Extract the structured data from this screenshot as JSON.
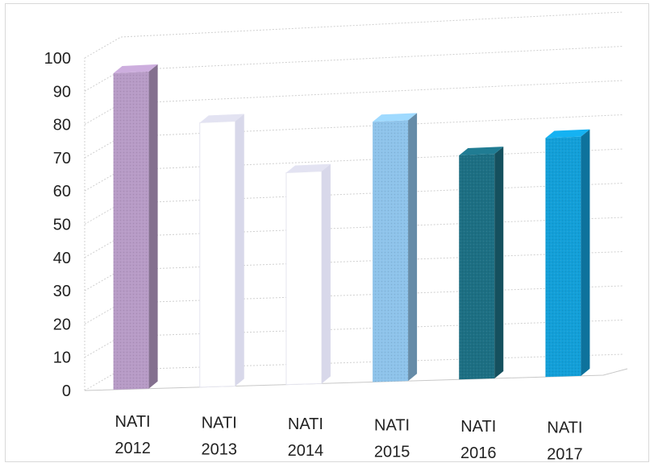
{
  "chart_data": {
    "type": "bar",
    "title": "",
    "xlabel": "",
    "ylabel": "",
    "categories": [
      [
        "NATI",
        "2012"
      ],
      [
        "NATI",
        "2013"
      ],
      [
        "NATI",
        "2014"
      ],
      [
        "NATI",
        "2015"
      ],
      [
        "NATI",
        "2016"
      ],
      [
        "NATI",
        "2017"
      ]
    ],
    "values": [
      95,
      79,
      63,
      77,
      66,
      70
    ],
    "colors": [
      "#b79bc6",
      "#ffffff",
      "#ffffff",
      "#8ec3ea",
      "#1d6f83",
      "#139fd8"
    ],
    "ylim": [
      0,
      100
    ],
    "yticks": [
      "0",
      "10",
      "20",
      "30",
      "40",
      "50",
      "60",
      "70",
      "80",
      "90",
      "100"
    ],
    "grid": true,
    "style": "3d-column"
  }
}
